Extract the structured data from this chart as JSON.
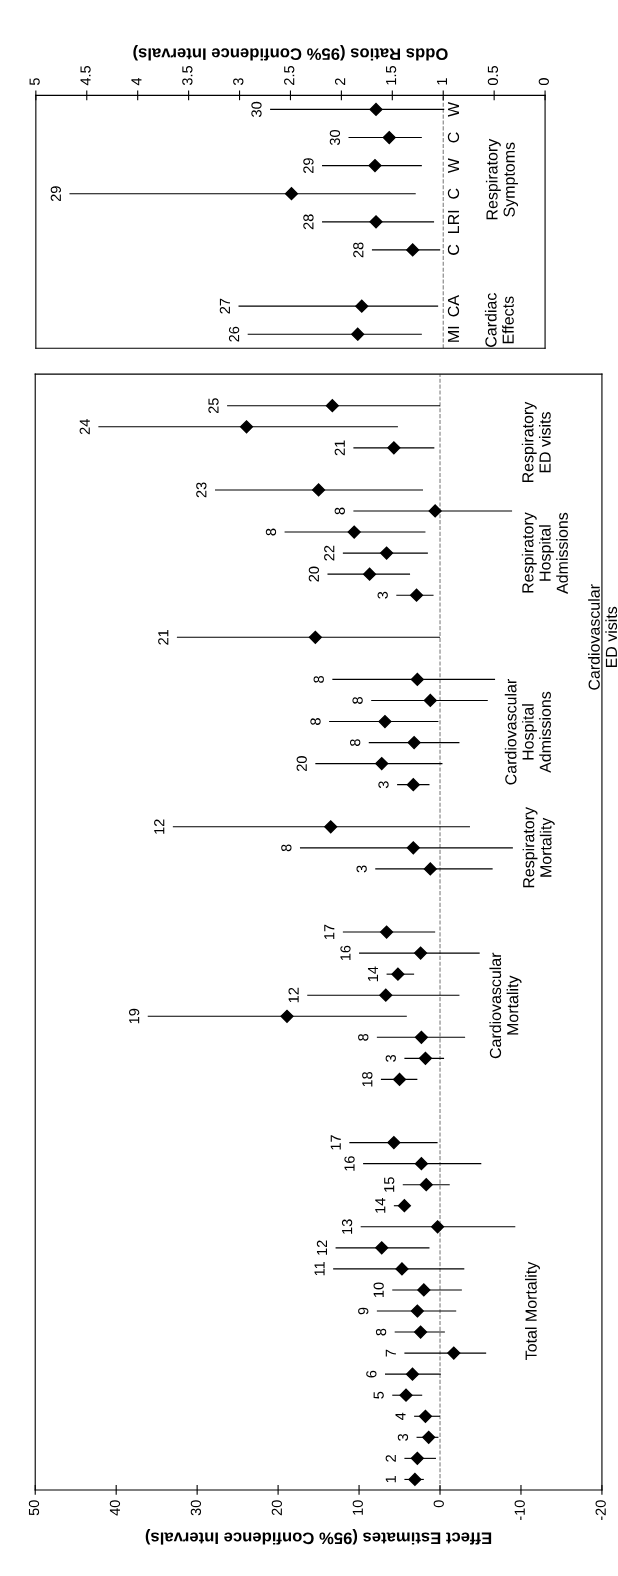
{
  "chart_data": [
    {
      "type": "scatter",
      "orientation": "horizontal",
      "marker": "diamond",
      "categories": [
        null,
        "25",
        "24",
        "21",
        null,
        "23",
        "8",
        "8",
        "22",
        "20",
        "3",
        null,
        "21",
        null,
        "8",
        "8",
        "8",
        "8",
        "20",
        "3",
        null,
        "12",
        "8",
        "3",
        null,
        null,
        "17",
        "16",
        "14",
        "12",
        "19",
        "8",
        "3",
        "18",
        null,
        null,
        "17",
        "16",
        "15",
        "14",
        "13",
        "12",
        "11",
        "10",
        "9",
        "8",
        "7",
        "6",
        "5",
        "4",
        "3",
        "2",
        "1"
      ],
      "series": [
        {
          "name": "Total Mortality",
          "color": "#000000",
          "values": [
            null,
            null,
            null,
            null,
            null,
            null,
            null,
            null,
            null,
            null,
            null,
            null,
            null,
            null,
            null,
            null,
            null,
            null,
            null,
            null,
            null,
            null,
            null,
            null,
            null,
            null,
            null,
            null,
            null,
            null,
            null,
            null,
            null,
            null,
            null,
            null,
            5.7,
            2.3,
            1.7,
            4.4,
            0.3,
            7.2,
            4.7,
            2.0,
            2.8,
            2.4,
            -1.7,
            3.4,
            4.2,
            1.8,
            1.4,
            2.8,
            3.1
          ],
          "errors": [
            null,
            null,
            null,
            null,
            null,
            null,
            null,
            null,
            null,
            null,
            null,
            null,
            null,
            null,
            null,
            null,
            null,
            null,
            null,
            null,
            null,
            null,
            null,
            null,
            null,
            null,
            null,
            null,
            null,
            null,
            null,
            null,
            null,
            null,
            null,
            null,
            [
              0.3,
              11.2
            ],
            [
              -5.1,
              9.5
            ],
            [
              -1.2,
              4.6
            ],
            [
              3.7,
              5.7
            ],
            [
              -9.3,
              9.8
            ],
            [
              1.3,
              12.9
            ],
            [
              -3.0,
              13.2
            ],
            [
              -2.7,
              5.9
            ],
            [
              -2.0,
              7.8
            ],
            [
              -0.6,
              5.6
            ],
            [
              -5.7,
              4.4
            ],
            [
              -0.1,
              6.8
            ],
            [
              2.2,
              5.9
            ],
            [
              0.0,
              3.2
            ],
            [
              0.2,
              2.9
            ],
            [
              0.5,
              4.4
            ],
            [
              2.0,
              4.4
            ]
          ]
        },
        {
          "name": "Cardiovascular\nMortality",
          "color": "#000000",
          "values": [
            null,
            null,
            null,
            null,
            null,
            null,
            null,
            null,
            null,
            null,
            null,
            null,
            null,
            null,
            null,
            null,
            null,
            null,
            null,
            null,
            null,
            null,
            null,
            null,
            null,
            null,
            6.6,
            2.4,
            5.2,
            6.7,
            18.9,
            2.3,
            1.8,
            5.0,
            null,
            null,
            null,
            null,
            null,
            null,
            null,
            null,
            null,
            null,
            null,
            null,
            null,
            null,
            null,
            null,
            null,
            null,
            null
          ],
          "errors": [
            null,
            null,
            null,
            null,
            null,
            null,
            null,
            null,
            null,
            null,
            null,
            null,
            null,
            null,
            null,
            null,
            null,
            null,
            null,
            null,
            null,
            null,
            null,
            null,
            null,
            null,
            [
              0.6,
              12.0
            ],
            [
              -4.9,
              10.0
            ],
            [
              3.2,
              6.6
            ],
            [
              -2.4,
              16.4
            ],
            [
              4.1,
              36.1
            ],
            [
              -3.1,
              7.8
            ],
            [
              -0.5,
              4.4
            ],
            [
              2.8,
              7.3
            ],
            null,
            null,
            null,
            null,
            null,
            null,
            null,
            null,
            null,
            null,
            null,
            null,
            null,
            null,
            null,
            null,
            null,
            null,
            null
          ]
        },
        {
          "name": "Respiratory\nMortality",
          "color": "#000000",
          "values": [
            null,
            null,
            null,
            null,
            null,
            null,
            null,
            null,
            null,
            null,
            null,
            null,
            null,
            null,
            null,
            null,
            null,
            null,
            null,
            null,
            null,
            13.5,
            3.3,
            1.2,
            null,
            null,
            null,
            null,
            null,
            null,
            null,
            null,
            null,
            null,
            null,
            null,
            null,
            null,
            null,
            null,
            null,
            null,
            null,
            null,
            null,
            null,
            null,
            null,
            null,
            null,
            null,
            null,
            null
          ],
          "errors": [
            null,
            null,
            null,
            null,
            null,
            null,
            null,
            null,
            null,
            null,
            null,
            null,
            null,
            null,
            null,
            null,
            null,
            null,
            null,
            null,
            null,
            [
              -3.7,
              33.0
            ],
            [
              -9.0,
              17.3
            ],
            [
              -6.5,
              8.0
            ],
            null,
            null,
            null,
            null,
            null,
            null,
            null,
            null,
            null,
            null,
            null,
            null,
            null,
            null,
            null,
            null,
            null,
            null,
            null,
            null,
            null,
            null,
            null,
            null,
            null,
            null,
            null,
            null,
            null
          ]
        },
        {
          "name": "Cardiovascular\nHospital\nAdmissions",
          "color": "#000000",
          "values": [
            null,
            null,
            null,
            null,
            null,
            null,
            null,
            null,
            null,
            null,
            null,
            null,
            null,
            null,
            2.8,
            1.2,
            6.8,
            3.2,
            7.2,
            3.3,
            null,
            null,
            null,
            null,
            null,
            null,
            null,
            null,
            null,
            null,
            null,
            null,
            null,
            null,
            null,
            null,
            null,
            null,
            null,
            null,
            null,
            null,
            null,
            null,
            null,
            null,
            null,
            null,
            null,
            null,
            null,
            null,
            null
          ],
          "errors": [
            null,
            null,
            null,
            null,
            null,
            null,
            null,
            null,
            null,
            null,
            null,
            null,
            null,
            null,
            [
              -6.8,
              13.3
            ],
            [
              -5.9,
              8.5
            ],
            [
              0.2,
              13.7
            ],
            [
              -2.4,
              8.8
            ],
            [
              -0.3,
              15.4
            ],
            [
              1.3,
              5.3
            ],
            null,
            null,
            null,
            null,
            null,
            null,
            null,
            null,
            null,
            null,
            null,
            null,
            null,
            null,
            null,
            null,
            null,
            null,
            null,
            null,
            null,
            null,
            null,
            null,
            null,
            null,
            null,
            null,
            null,
            null,
            null,
            null,
            null
          ]
        },
        {
          "name": "Cardiovascular\nED visits",
          "color": "#000000",
          "values": [
            null,
            null,
            null,
            null,
            null,
            null,
            null,
            null,
            null,
            null,
            null,
            null,
            15.4,
            null,
            null,
            null,
            null,
            null,
            null,
            null,
            null,
            null,
            null,
            null,
            null,
            null,
            null,
            null,
            null,
            null,
            null,
            null,
            null,
            null,
            null,
            null,
            null,
            null,
            null,
            null,
            null,
            null,
            null,
            null,
            null,
            null,
            null,
            null,
            null,
            null,
            null,
            null,
            null
          ],
          "errors": [
            null,
            null,
            null,
            null,
            null,
            null,
            null,
            null,
            null,
            null,
            null,
            null,
            [
              0.0,
              32.5
            ],
            null,
            null,
            null,
            null,
            null,
            null,
            null,
            null,
            null,
            null,
            null,
            null,
            null,
            null,
            null,
            null,
            null,
            null,
            null,
            null,
            null,
            null,
            null,
            null,
            null,
            null,
            null,
            null,
            null,
            null,
            null,
            null,
            null,
            null,
            null,
            null,
            null,
            null,
            null,
            null
          ]
        },
        {
          "name": "Respiratory\nHospital\nAdmissions",
          "color": "#000000",
          "values": [
            null,
            null,
            null,
            null,
            null,
            null,
            0.6,
            10.6,
            6.6,
            8.7,
            2.9,
            null,
            null,
            null,
            null,
            null,
            null,
            null,
            null,
            null,
            null,
            null,
            null,
            null,
            null,
            null,
            null,
            null,
            null,
            null,
            null,
            null,
            null,
            null,
            null,
            null,
            null,
            null,
            null,
            null,
            null,
            null,
            null,
            null,
            null,
            null,
            null,
            null,
            null,
            null,
            null,
            null,
            null
          ],
          "errors": [
            null,
            null,
            null,
            null,
            null,
            null,
            [
              -8.9,
              10.7
            ],
            [
              1.8,
              19.2
            ],
            [
              1.5,
              12.0
            ],
            [
              3.7,
              13.9
            ],
            [
              0.8,
              5.4
            ],
            null,
            null,
            null,
            null,
            null,
            null,
            null,
            null,
            null,
            null,
            null,
            null,
            null,
            null,
            null,
            null,
            null,
            null,
            null,
            null,
            null,
            null,
            null,
            null,
            null,
            null,
            null,
            null,
            null,
            null,
            null,
            null,
            null,
            null,
            null,
            null,
            null,
            null,
            null,
            null,
            null,
            null
          ]
        },
        {
          "name": "Respiratory\nED visits",
          "color": "#000000",
          "values": [
            null,
            13.3,
            23.9,
            5.7,
            null,
            15.0,
            null,
            null,
            null,
            null,
            null,
            null,
            null,
            null,
            null,
            null,
            null,
            null,
            null,
            null,
            null,
            null,
            null,
            null,
            null,
            null,
            null,
            null,
            null,
            null,
            null,
            null,
            null,
            null,
            null,
            null,
            null,
            null,
            null,
            null,
            null,
            null,
            null,
            null,
            null,
            null,
            null,
            null,
            null,
            null,
            null,
            null,
            null
          ],
          "errors": [
            null,
            [
              0.0,
              26.3
            ],
            [
              5.2,
              42.2
            ],
            [
              0.7,
              10.7
            ],
            null,
            [
              2.1,
              27.8
            ],
            null,
            null,
            null,
            null,
            null,
            null,
            null,
            null,
            null,
            null,
            null,
            null,
            null,
            null,
            null,
            null,
            null,
            null,
            null,
            null,
            null,
            null,
            null,
            null,
            null,
            null,
            null,
            null,
            null,
            null,
            null,
            null,
            null,
            null,
            null,
            null,
            null,
            null,
            null,
            null,
            null,
            null,
            null,
            null,
            null,
            null,
            null
          ]
        }
      ],
      "xlim": [
        50,
        -20
      ],
      "xticks": [
        50,
        40,
        30,
        20,
        10,
        0,
        -10,
        -20
      ],
      "xlabel": "Effect Estimates (95% Confidence Intervals)",
      "ref_lines": [
        {
          "axis": "x",
          "value": 0,
          "color": "#808080",
          "line_style": "dashed"
        }
      ]
    },
    {
      "type": "scatter",
      "orientation": "horizontal",
      "marker": "diamond",
      "categories": [
        "30",
        "30",
        "29",
        "29",
        "28",
        "28",
        null,
        "27",
        "26"
      ],
      "series": [
        {
          "name": "Cardiac\nEffects",
          "color": "#000000",
          "values": [
            null,
            null,
            null,
            null,
            null,
            null,
            null,
            1.8,
            1.84
          ],
          "errors": [
            null,
            null,
            null,
            null,
            null,
            null,
            null,
            [
              1.05,
              3.01
            ],
            [
              1.21,
              2.92
            ]
          ]
        },
        {
          "name": "Respiratory\nSymptoms",
          "color": "#000000",
          "values": [
            1.66,
            1.53,
            1.67,
            2.49,
            1.66,
            1.3,
            null,
            null,
            null
          ],
          "errors": [
            [
              0.99,
              2.7
            ],
            [
              1.21,
              1.93
            ],
            [
              1.21,
              2.19
            ],
            [
              1.27,
              4.67
            ],
            [
              1.09,
              2.19
            ],
            [
              1.03,
              1.7
            ],
            null,
            null,
            null
          ]
        }
      ],
      "annotations": [
        "W",
        "C",
        "W",
        "C",
        "LRI",
        "C",
        "CA",
        "MI"
      ],
      "xlim": [
        5,
        0
      ],
      "xticks": [
        5,
        4.5,
        4,
        3.5,
        3,
        2.5,
        2,
        1.5,
        1,
        0.5,
        0
      ],
      "xlabel": "Odds Ratios (95% Confidence Intervals)",
      "ref_lines": [
        {
          "axis": "x",
          "value": 1,
          "color": "#808080",
          "line_style": "dashed"
        }
      ]
    }
  ]
}
